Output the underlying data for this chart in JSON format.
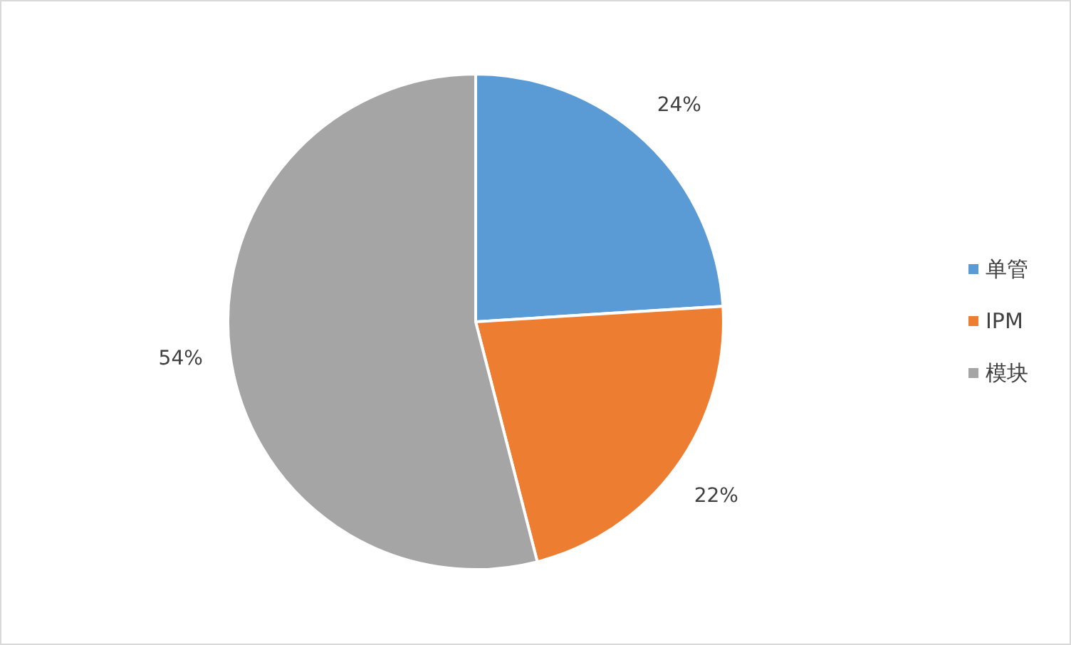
{
  "chart_data": {
    "type": "pie",
    "categories": [
      "单管",
      "IPM",
      "模块"
    ],
    "values": [
      24,
      22,
      54
    ],
    "colors": [
      "#5b9bd5",
      "#ed7d31",
      "#a5a5a5"
    ],
    "value_labels": [
      "24%",
      "22%",
      "54%"
    ],
    "legend": "right"
  }
}
